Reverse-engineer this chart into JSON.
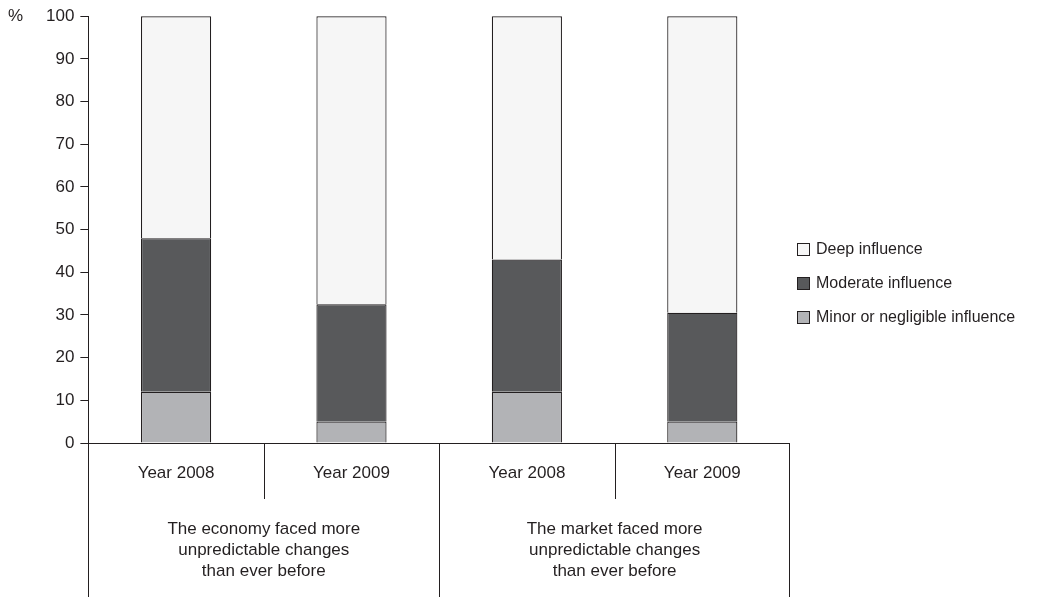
{
  "chart_data": {
    "type": "bar",
    "stacked": true,
    "ylabel": "%",
    "categories": [
      "Year 2008",
      "Year 2009",
      "Year 2008",
      "Year 2009"
    ],
    "series": [
      {
        "name": "Minor or negligible influence",
        "color": "#b2b3b6",
        "values": [
          12,
          5,
          12,
          5
        ]
      },
      {
        "name": "Moderate influence",
        "color": "#58595b",
        "values": [
          36,
          27.5,
          31,
          25.5
        ]
      },
      {
        "name": "Deep influence",
        "color": "#f6f6f6",
        "values": [
          52,
          67.5,
          57,
          69.5
        ]
      }
    ],
    "ylim": [
      0,
      100
    ],
    "yticks": [
      0,
      10,
      20,
      30,
      40,
      50,
      60,
      70,
      80,
      90,
      100
    ],
    "grid": false,
    "legend": "right",
    "annotations": [
      "The economy faced more unpredictable changes than ever before",
      "The market faced more unpredictable changes than ever before"
    ]
  }
}
